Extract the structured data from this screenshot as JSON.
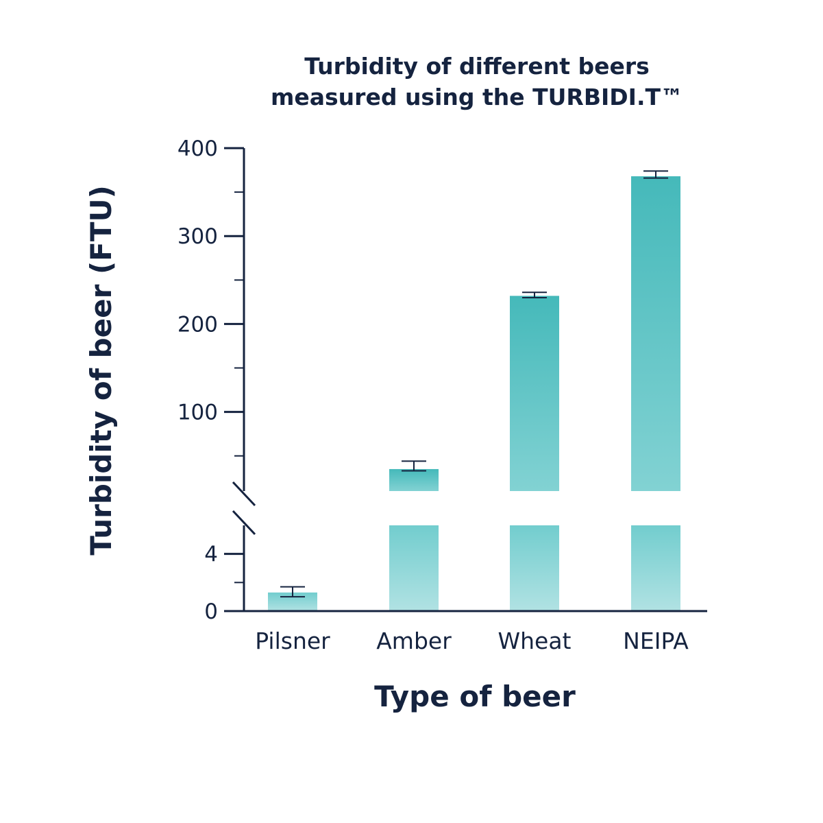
{
  "chart_data": {
    "type": "bar",
    "title": [
      "Turbidity of different beers",
      "measured using the TURBIDI.T™"
    ],
    "xlabel": "Type of beer",
    "ylabel": "Turbidity of beer (FTU)",
    "categories": [
      "Pilsner",
      "Amber",
      "Wheat",
      "NEIPA"
    ],
    "values": [
      1.3,
      35,
      232,
      368
    ],
    "error_upper": [
      1.7,
      44,
      236,
      374
    ],
    "error_lower": [
      1.0,
      33,
      230,
      366
    ],
    "axis_break": true,
    "lower_segment": {
      "ylim": [
        0,
        6
      ],
      "ticks": [
        0,
        4
      ],
      "minor_ticks": [
        2
      ]
    },
    "upper_segment": {
      "ylim": [
        10,
        400
      ],
      "ticks": [
        100,
        200,
        300,
        400
      ],
      "minor_ticks": [
        50,
        150,
        250,
        350
      ]
    },
    "tick_labels": [
      "0",
      "4",
      "100",
      "200",
      "300",
      "400"
    ],
    "grid": false,
    "colors": {
      "bar_top": "#45b9ba",
      "bar_bottom": "#b1e2e3",
      "text": "#15233f",
      "axis": "#15233f"
    }
  }
}
